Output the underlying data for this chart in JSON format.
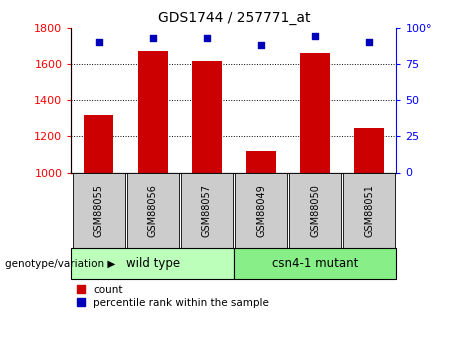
{
  "title": "GDS1744 / 257771_at",
  "samples": [
    "GSM88055",
    "GSM88056",
    "GSM88057",
    "GSM88049",
    "GSM88050",
    "GSM88051"
  ],
  "counts": [
    1320,
    1670,
    1615,
    1120,
    1660,
    1248
  ],
  "percentile_ranks": [
    90,
    93,
    93,
    88,
    94,
    90
  ],
  "ylim": [
    1000,
    1800
  ],
  "yticks": [
    1000,
    1200,
    1400,
    1600,
    1800
  ],
  "y2lim": [
    0,
    100
  ],
  "y2ticks": [
    0,
    25,
    50,
    75,
    100
  ],
  "y2ticklabels": [
    "0",
    "25",
    "50",
    "75",
    "100°"
  ],
  "bar_color": "#cc0000",
  "dot_color": "#0000bb",
  "wt_color": "#bbffbb",
  "mutant_color": "#88ee88",
  "tick_bg_color": "#cccccc",
  "bar_width": 0.55,
  "group_label": "genotype/variation",
  "legend_count": "count",
  "legend_pct": "percentile rank within the sample",
  "wt_label": "wild type",
  "mutant_label": "csn4-1 mutant"
}
